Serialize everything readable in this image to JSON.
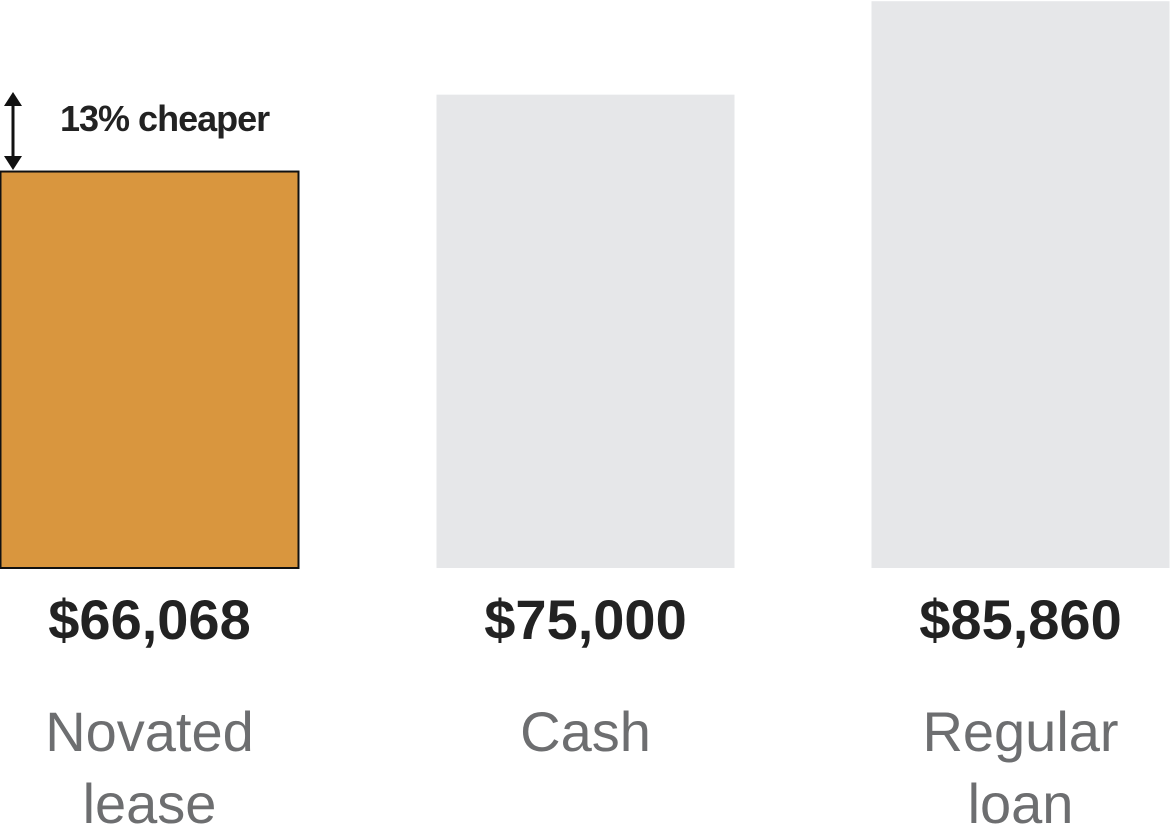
{
  "chart_data": {
    "type": "bar",
    "annotation": "13% cheaper",
    "categories": [
      "Novated lease",
      "Cash",
      "Regular loan"
    ],
    "values": [
      66068,
      75000,
      85860
    ],
    "value_labels": [
      "$66,068",
      "$75,000",
      "$85,860"
    ],
    "colors": [
      "#d9963e",
      "#e6e7e9",
      "#e6e7e9"
    ],
    "ylim": [
      20000,
      86000
    ]
  }
}
